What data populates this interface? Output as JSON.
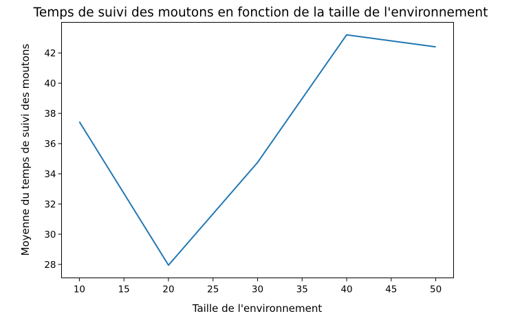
{
  "chart_data": {
    "type": "line",
    "title": "Temps de suivi des moutons en fonction de la taille de l'environnement",
    "xlabel": "Taille de l'environnement",
    "ylabel": "Moyenne du temps de suivi des moutons",
    "x": [
      10,
      20,
      30,
      40,
      50
    ],
    "series": [
      {
        "values": [
          37.45,
          27.95,
          34.75,
          43.2,
          42.4
        ],
        "color": "#1f77b4"
      }
    ],
    "xlim": [
      8,
      52
    ],
    "ylim": [
      27.11,
      44.03
    ],
    "xticks": [
      10,
      15,
      20,
      25,
      30,
      35,
      40,
      45,
      50
    ],
    "yticks": [
      28,
      30,
      32,
      34,
      36,
      38,
      40,
      42
    ],
    "grid": false,
    "legend": null
  }
}
